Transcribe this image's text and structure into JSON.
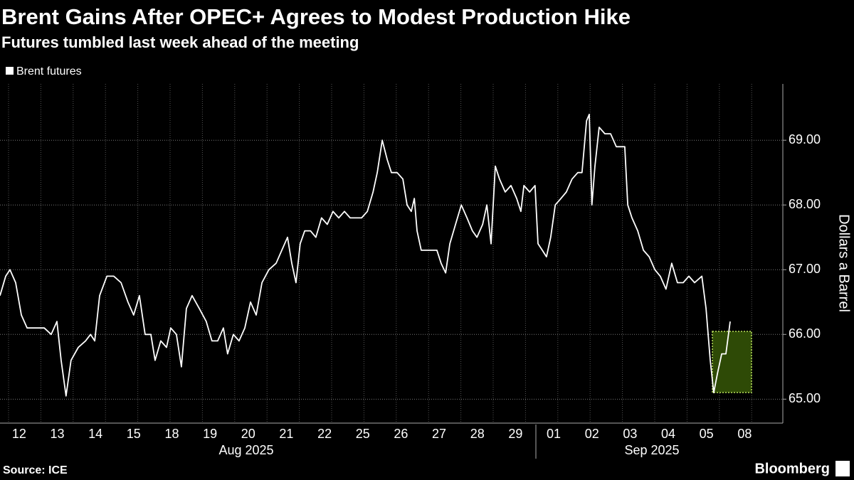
{
  "chart_data": {
    "type": "line",
    "title": "Brent Gains After OPEC+ Agrees to Modest Production Hike",
    "subtitle": "Futures tumbled last week ahead of the meeting",
    "y_label": "Dollars a Barrel",
    "source": "Source: ICE",
    "brand": "Bloomberg",
    "x_groups": [
      "Aug 2025",
      "Sep 2025"
    ],
    "xlim": [
      -0.5,
      20
    ],
    "xticks": [
      {
        "value": 0,
        "label": "12"
      },
      {
        "value": 1,
        "label": "13"
      },
      {
        "value": 2,
        "label": "14"
      },
      {
        "value": 3,
        "label": "15"
      },
      {
        "value": 4,
        "label": "18"
      },
      {
        "value": 5,
        "label": "19"
      },
      {
        "value": 6,
        "label": "20"
      },
      {
        "value": 7,
        "label": "21"
      },
      {
        "value": 8,
        "label": "22"
      },
      {
        "value": 9,
        "label": "25"
      },
      {
        "value": 10,
        "label": "26"
      },
      {
        "value": 11,
        "label": "27"
      },
      {
        "value": 12,
        "label": "28"
      },
      {
        "value": 13,
        "label": "29"
      },
      {
        "value": 14,
        "label": "01"
      },
      {
        "value": 15,
        "label": "02"
      },
      {
        "value": 16,
        "label": "03"
      },
      {
        "value": 17,
        "label": "04"
      },
      {
        "value": 18,
        "label": "05"
      },
      {
        "value": 19,
        "label": "08"
      }
    ],
    "ylim": [
      64.63,
      69.87
    ],
    "yticks": [
      {
        "value": 65,
        "label": "65.00"
      },
      {
        "value": 66,
        "label": "66.00"
      },
      {
        "value": 67,
        "label": "67.00"
      },
      {
        "value": 68,
        "label": "68.00"
      },
      {
        "value": 69,
        "label": "69.00"
      }
    ],
    "grid": true,
    "series": [
      {
        "name": "Brent futures",
        "color": "#ffffff",
        "x": [
          -0.5,
          -0.35,
          -0.24,
          -0.09,
          0.06,
          0.21,
          0.43,
          0.66,
          0.84,
          0.99,
          1.1,
          1.23,
          1.36,
          1.55,
          1.74,
          1.87,
          1.98,
          2.11,
          2.3,
          2.48,
          2.67,
          2.85,
          3.0,
          3.15,
          3.3,
          3.45,
          3.56,
          3.71,
          3.86,
          3.97,
          4.12,
          4.25,
          4.38,
          4.53,
          4.72,
          4.9,
          5.05,
          5.2,
          5.35,
          5.46,
          5.61,
          5.76,
          5.91,
          6.06,
          6.21,
          6.36,
          6.54,
          6.73,
          6.88,
          7.03,
          7.14,
          7.25,
          7.36,
          7.48,
          7.63,
          7.77,
          7.92,
          8.07,
          8.22,
          8.37,
          8.52,
          8.67,
          8.82,
          8.97,
          9.12,
          9.27,
          9.38,
          9.51,
          9.64,
          9.75,
          9.9,
          10.05,
          10.16,
          10.27,
          10.35,
          10.42,
          10.53,
          10.68,
          10.83,
          10.94,
          11.05,
          11.17,
          11.28,
          11.43,
          11.58,
          11.73,
          11.87,
          11.99,
          12.14,
          12.25,
          12.36,
          12.47,
          12.58,
          12.73,
          12.88,
          13.03,
          13.14,
          13.22,
          13.37,
          13.51,
          13.59,
          13.7,
          13.81,
          13.92,
          14.04,
          14.19,
          14.33,
          14.48,
          14.63,
          14.74,
          14.86,
          14.93,
          15.0,
          15.08,
          15.19,
          15.34,
          15.49,
          15.64,
          15.75,
          15.86,
          15.94,
          16.05,
          16.2,
          16.35,
          16.5,
          16.65,
          16.79,
          16.94,
          17.09,
          17.24,
          17.39,
          17.54,
          17.69,
          17.88,
          17.99,
          18.1,
          18.19,
          18.29,
          18.4,
          18.51,
          18.62
        ],
        "values": [
          66.6,
          66.9,
          67.0,
          66.8,
          66.3,
          66.1,
          66.1,
          66.1,
          66.0,
          66.2,
          65.6,
          65.05,
          65.6,
          65.8,
          65.9,
          66.0,
          65.9,
          66.6,
          66.9,
          66.9,
          66.8,
          66.5,
          66.3,
          66.6,
          66.0,
          66.0,
          65.6,
          65.9,
          65.8,
          66.1,
          66.0,
          65.5,
          66.4,
          66.6,
          66.4,
          66.2,
          65.9,
          65.9,
          66.1,
          65.7,
          66.0,
          65.9,
          66.1,
          66.5,
          66.3,
          66.8,
          67.0,
          67.1,
          67.3,
          67.5,
          67.1,
          66.8,
          67.4,
          67.6,
          67.6,
          67.5,
          67.8,
          67.7,
          67.9,
          67.8,
          67.9,
          67.8,
          67.8,
          67.8,
          67.9,
          68.2,
          68.5,
          69.0,
          68.7,
          68.5,
          68.5,
          68.4,
          68.0,
          67.9,
          68.1,
          67.6,
          67.3,
          67.3,
          67.3,
          67.3,
          67.1,
          66.95,
          67.4,
          67.7,
          68.0,
          67.8,
          67.6,
          67.5,
          67.7,
          68.0,
          67.4,
          68.6,
          68.4,
          68.2,
          68.3,
          68.1,
          67.9,
          68.3,
          68.2,
          68.3,
          67.4,
          67.3,
          67.2,
          67.5,
          68.0,
          68.1,
          68.2,
          68.4,
          68.5,
          68.5,
          69.3,
          69.4,
          68.0,
          68.6,
          69.2,
          69.1,
          69.1,
          68.9,
          68.9,
          68.9,
          68.0,
          67.8,
          67.6,
          67.3,
          67.2,
          67.0,
          66.9,
          66.7,
          67.1,
          66.8,
          66.8,
          66.9,
          66.8,
          66.9,
          66.4,
          65.6,
          65.1,
          65.4,
          65.7,
          65.7,
          66.2
        ]
      }
    ]
  }
}
